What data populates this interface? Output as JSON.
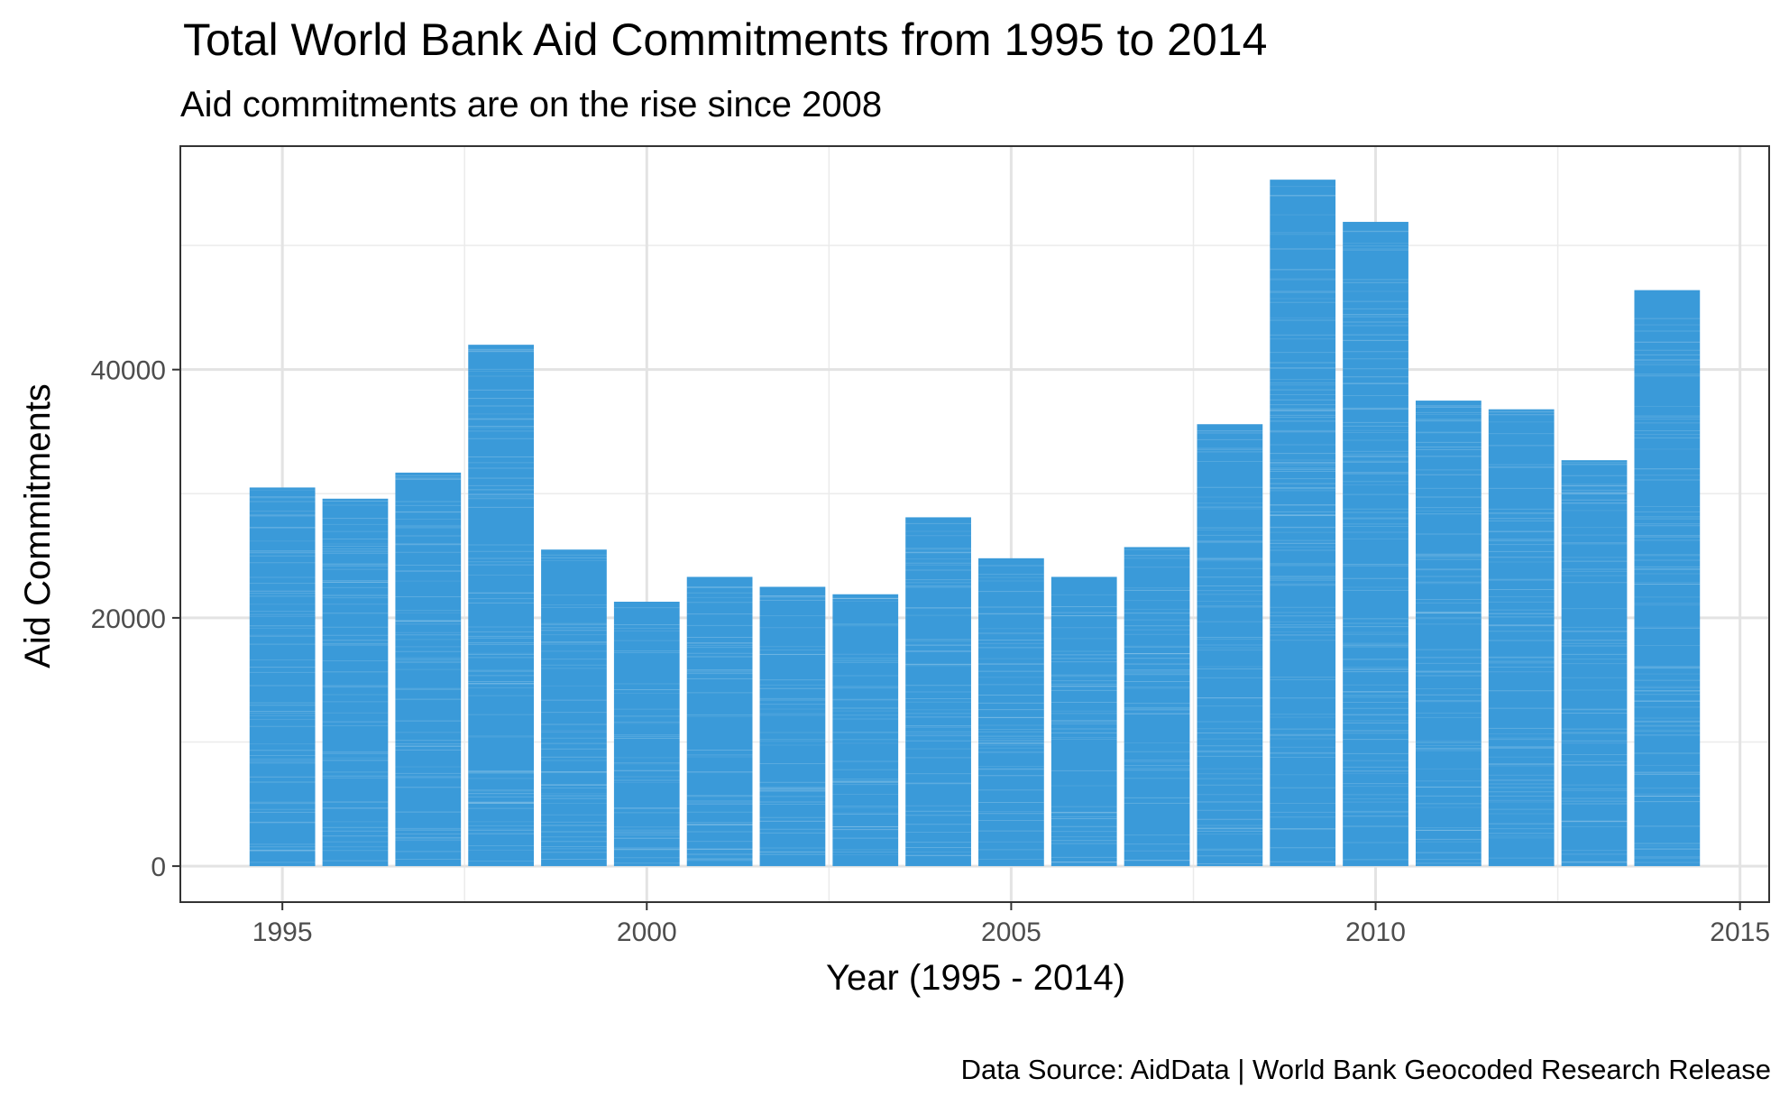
{
  "chart_data": {
    "type": "bar",
    "title": "Total World Bank Aid Commitments from 1995 to 2014",
    "subtitle": "Aid commitments are on the rise since 2008",
    "xlabel": "Year (1995 - 2014)",
    "ylabel": "Aid Commitments",
    "caption": "Data Source: AidData | World Bank Geocoded Research Release",
    "x": [
      1995,
      1996,
      1997,
      1998,
      1999,
      2000,
      2001,
      2002,
      2003,
      2004,
      2005,
      2006,
      2007,
      2008,
      2009,
      2010,
      2011,
      2012,
      2013,
      2014
    ],
    "values": [
      30500,
      29600,
      31700,
      42000,
      25500,
      21300,
      23300,
      22500,
      21900,
      28100,
      24800,
      23300,
      25700,
      35600,
      55300,
      51900,
      37500,
      36800,
      32700,
      46400
    ],
    "xlim": [
      1993.6,
      2015.4
    ],
    "ylim": [
      -2900,
      58000
    ],
    "xticks": [
      "1995",
      "2000",
      "2005",
      "2010",
      "2015"
    ],
    "yticks": [
      "0",
      "20000",
      "40000"
    ],
    "bar_color": "#3a9ad9",
    "grid": true,
    "legend": "none"
  }
}
